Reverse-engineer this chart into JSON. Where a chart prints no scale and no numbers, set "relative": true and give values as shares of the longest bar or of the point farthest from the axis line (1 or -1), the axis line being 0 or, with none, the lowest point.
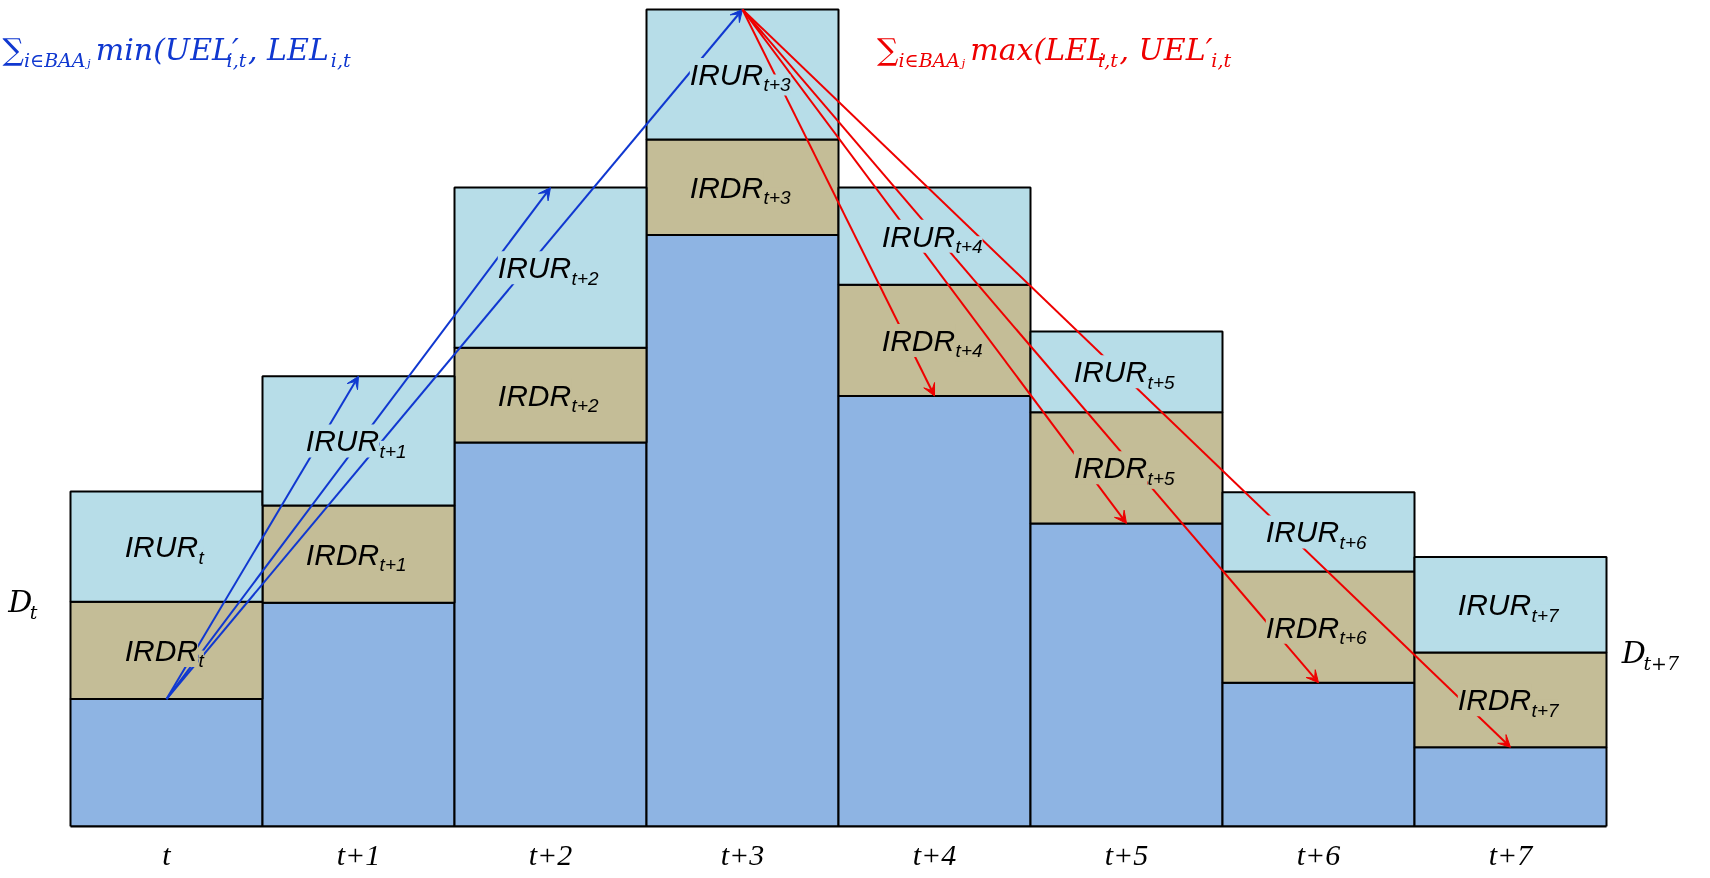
{
  "chart_data": {
    "type": "bar",
    "stacked": true,
    "relative": true,
    "categories": [
      "t",
      "t+1",
      "t+2",
      "t+3",
      "t+4",
      "t+5",
      "t+6",
      "t+7"
    ],
    "series": [
      {
        "color": "#8eb4e3",
        "values": [
          0.156,
          0.274,
          0.47,
          0.724,
          0.527,
          0.371,
          0.176,
          0.097
        ]
      },
      {
        "color": "#c4bd97",
        "values": [
          0.119,
          0.119,
          0.116,
          0.117,
          0.136,
          0.136,
          0.136,
          0.116
        ]
      },
      {
        "color": "#b7dde8",
        "values": [
          0.135,
          0.158,
          0.196,
          0.159,
          0.119,
          0.099,
          0.097,
          0.117
        ]
      }
    ],
    "annotations": [
      "∑$_{i∈BAAⱼ}$ min(UEL′$_{i,t}$, LEL$_{i,t}$",
      "∑$_{i∈BAAⱼ}$ max(LEL$_{i,t}$, UEL′$_{i,t}$",
      "D$_{t}$",
      "D$_{t+7}$",
      "IRDR$_{t}$",
      "IRUR$_{t}$",
      "IRDR$_{t+1}$",
      "IRUR$_{t+1}$",
      "IRDR$_{t+2}$",
      "IRUR$_{t+2}$",
      "IRDR$_{t+3}$",
      "IRUR$_{t+3}$",
      "IRDR$_{t+4}$",
      "IRUR$_{t+4}$",
      "IRDR$_{t+5}$",
      "IRUR$_{t+5}$",
      "IRDR$_{t+6}$",
      "IRUR$_{t+6}$",
      "IRDR$_{t+7}$",
      "IRUR$_{t+7}$"
    ]
  }
}
